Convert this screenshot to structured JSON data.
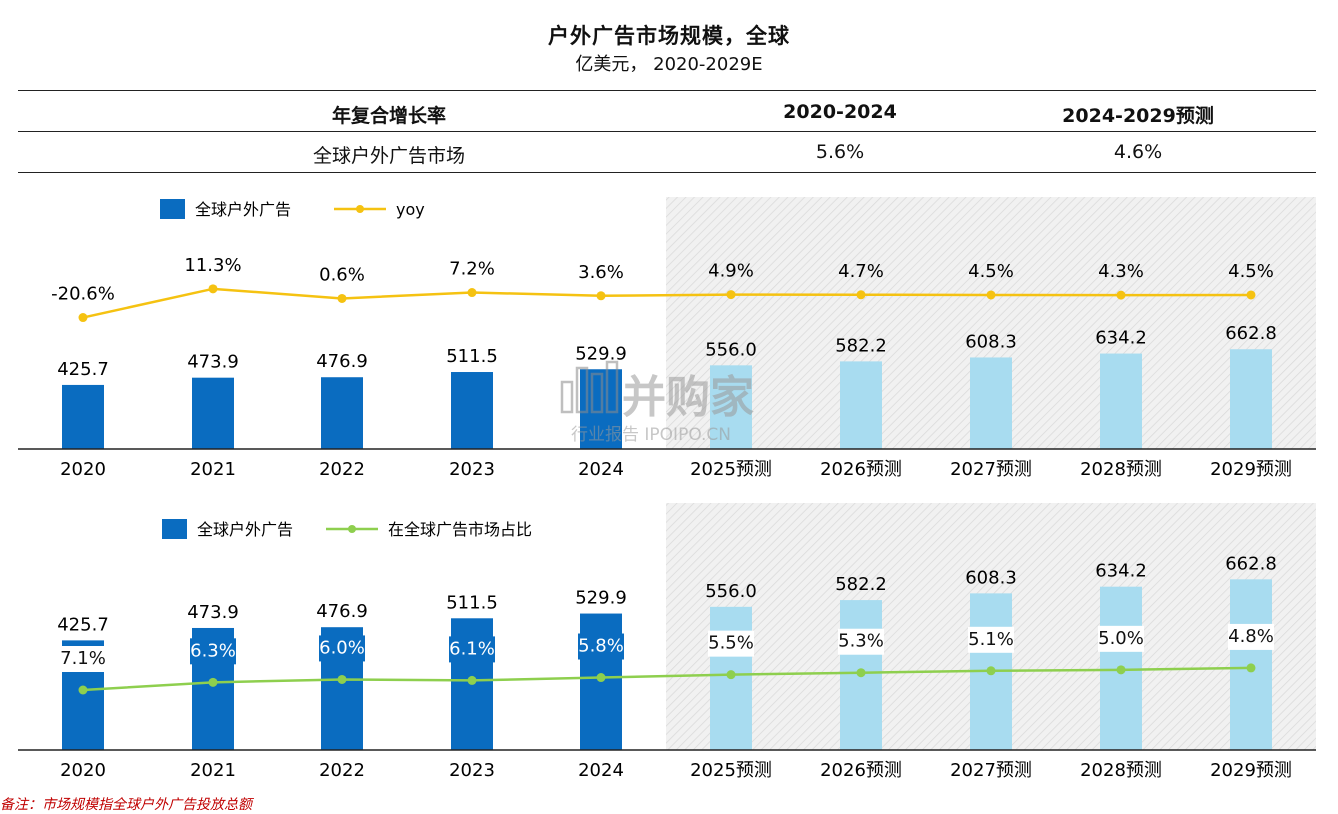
{
  "title": "户外广告市场规模，全球",
  "subtitle": "亿美元， 2020-2029E",
  "cagr_table": {
    "header": [
      "年复合增长率",
      "2020-2024",
      "2024-2029预测"
    ],
    "row": [
      "全球户外广告市场",
      "5.6%",
      "4.6%"
    ]
  },
  "watermark": {
    "brand": "并购家",
    "tagline": "行业报告 IPOIPO.CN"
  },
  "footnote": "备注：市场规模指全球户外广告投放总额",
  "colors": {
    "actual_bar": "#0a6cc0",
    "forecast_bar": "#a8dcf0",
    "yoy_line": "#f5c211",
    "share_line": "#8ecf4e",
    "forecast_shade": "#ececec"
  },
  "chart_data": [
    {
      "type": "bar+line",
      "categories": [
        "2020",
        "2021",
        "2022",
        "2023",
        "2024",
        "2025预测",
        "2026预测",
        "2027预测",
        "2028预测",
        "2029预测"
      ],
      "forecast_from_index": 5,
      "legend": {
        "bar": "全球户外广告",
        "line": "yoy"
      },
      "bar_values": [
        425.7,
        473.9,
        476.9,
        511.5,
        529.9,
        556.0,
        582.2,
        608.3,
        634.2,
        662.8
      ],
      "bar_labels": [
        "425.7",
        "473.9",
        "476.9",
        "511.5",
        "529.9",
        "556.0",
        "582.2",
        "608.3",
        "634.2",
        "662.8"
      ],
      "line_values": [
        -20.6,
        11.3,
        0.6,
        7.2,
        3.6,
        4.9,
        4.7,
        4.5,
        4.3,
        4.5
      ],
      "line_labels": [
        "-20.6%",
        "11.3%",
        "0.6%",
        "7.2%",
        "3.6%",
        "4.9%",
        "4.7%",
        "4.5%",
        "4.3%",
        "4.5%"
      ],
      "grid": false
    },
    {
      "type": "bar+line",
      "categories": [
        "2020",
        "2021",
        "2022",
        "2023",
        "2024",
        "2025预测",
        "2026预测",
        "2027预测",
        "2028预测",
        "2029预测"
      ],
      "forecast_from_index": 5,
      "legend": {
        "bar": "全球户外广告",
        "line": "在全球广告市场占比"
      },
      "bar_values": [
        425.7,
        473.9,
        476.9,
        511.5,
        529.9,
        556.0,
        582.2,
        608.3,
        634.2,
        662.8
      ],
      "bar_labels": [
        "425.7",
        "473.9",
        "476.9",
        "511.5",
        "529.9",
        "556.0",
        "582.2",
        "608.3",
        "634.2",
        "662.8"
      ],
      "line_values": [
        7.1,
        6.3,
        6.0,
        6.1,
        5.8,
        5.5,
        5.3,
        5.1,
        5.0,
        4.8
      ],
      "line_labels": [
        "7.1%",
        "6.3%",
        "6.0%",
        "6.1%",
        "5.8%",
        "5.5%",
        "5.3%",
        "5.1%",
        "5.0%",
        "4.8%"
      ],
      "grid": false
    }
  ]
}
